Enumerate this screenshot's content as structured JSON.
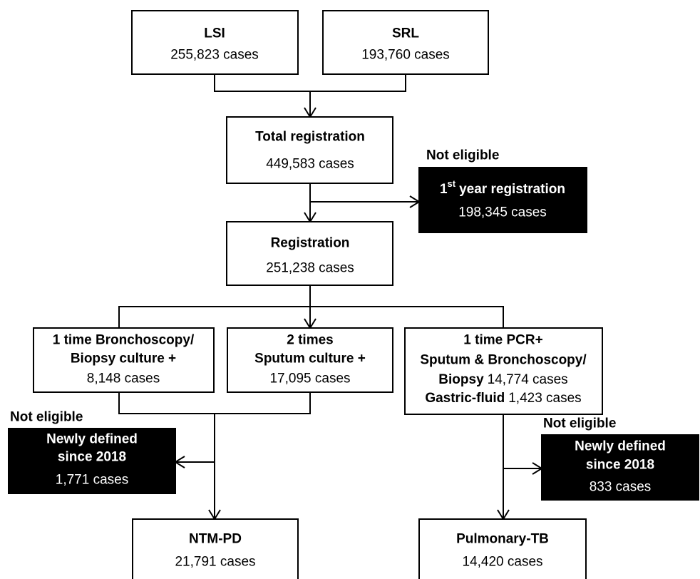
{
  "nodes": {
    "lsi": {
      "title": "LSI",
      "count": "255,823 cases"
    },
    "srl": {
      "title": "SRL",
      "count": "193,760 cases"
    },
    "total": {
      "title": "Total registration",
      "count": "449,583 cases"
    },
    "first_year": {
      "note": "Not eligible",
      "title": "1",
      "title_sup": "st",
      "title_rest": "year registration",
      "count": "198,345 cases"
    },
    "registration": {
      "title": "Registration",
      "count": "251,238 cases"
    },
    "bronchoscopy": {
      "line1": "1 time Bronchoscopy/",
      "line2": "Biopsy culture +",
      "count": "8,148 cases"
    },
    "sputum": {
      "line1": "2 times",
      "line2": "Sputum culture +",
      "count": "17,095 cases"
    },
    "pcr": {
      "line1": "1 time PCR+",
      "line2": "Sputum & Bronchoscopy/",
      "biopsy_label": "Biopsy",
      "biopsy_count": "14,774 cases",
      "gastric_label": "Gastric-fluid",
      "gastric_count": "1,423 cases"
    },
    "excluded_ntm": {
      "note": "Not eligible",
      "line1": "Newly defined",
      "line2": "since 2018",
      "count": "1,771 cases"
    },
    "excluded_tb": {
      "note": "Not eligible",
      "line1": "Newly defined",
      "line2": "since 2018",
      "count": "833 cases"
    },
    "ntm_pd": {
      "title": "NTM-PD",
      "count": "21,791 cases"
    },
    "pulmonary_tb": {
      "title": "Pulmonary-TB",
      "count": "14,420 cases"
    }
  }
}
